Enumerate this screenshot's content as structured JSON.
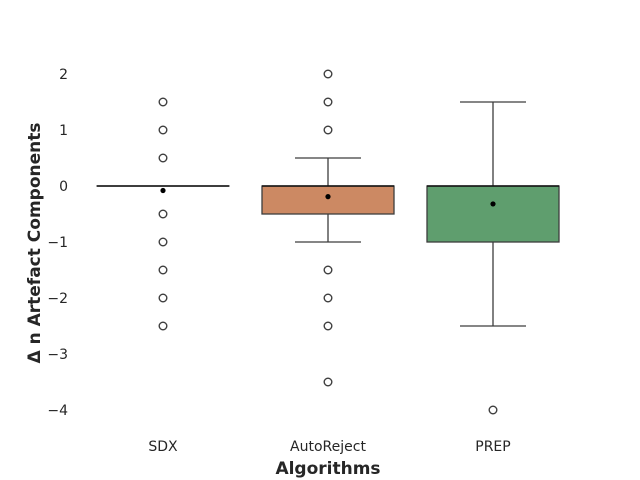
{
  "chart_data": {
    "type": "box",
    "title": "",
    "xlabel": "Algorithms",
    "ylabel": "Δ n Artefact Components",
    "ylim": [
      -4.4,
      2.5
    ],
    "yticks": [
      2,
      1,
      0,
      -1,
      -2,
      -3,
      -4
    ],
    "ytick_labels": [
      "2",
      "1",
      "0",
      "−1",
      "−2",
      "−3",
      "−4"
    ],
    "grid": false,
    "legend": "none",
    "categories": [
      "SDX",
      "AutoReject",
      "PREP"
    ],
    "boxes": [
      {
        "name": "SDX",
        "color": "#4c72b0",
        "q1": 0,
        "median": 0,
        "q3": 0,
        "whisker_low": 0,
        "whisker_high": 0,
        "mean": -0.08,
        "outliers": [
          1.5,
          1.0,
          0.5,
          -0.5,
          -1.0,
          -1.5,
          -2.0,
          -2.5
        ]
      },
      {
        "name": "AutoReject",
        "color": "#cc8963",
        "q1": -0.5,
        "median": 0,
        "q3": 0,
        "whisker_low": -1.0,
        "whisker_high": 0.5,
        "mean": -0.19,
        "outliers": [
          2.0,
          1.5,
          1.0,
          -1.5,
          -2.0,
          -2.5,
          -3.5
        ]
      },
      {
        "name": "PREP",
        "color": "#5f9e6e",
        "q1": -1.0,
        "median": 0,
        "q3": 0,
        "whisker_low": -2.5,
        "whisker_high": 1.5,
        "mean": -0.32,
        "outliers": [
          -4.0
        ]
      }
    ]
  }
}
